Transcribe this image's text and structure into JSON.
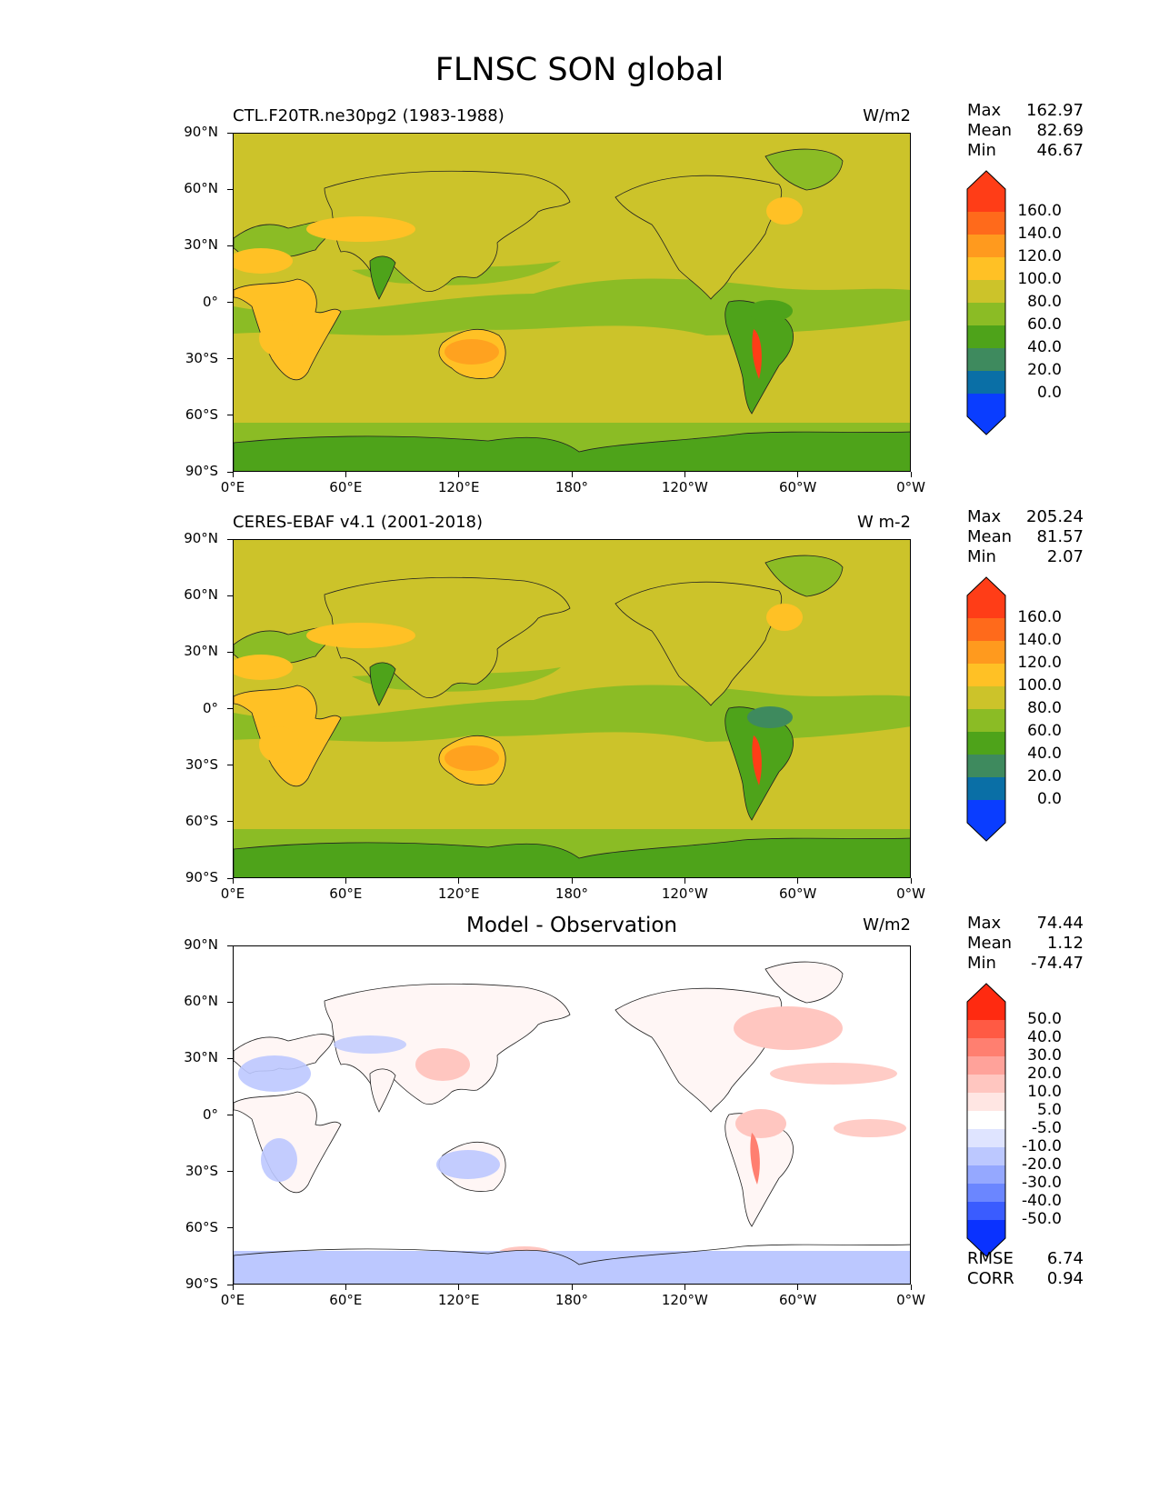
{
  "figure_title": "FLNSC SON global",
  "lat_ticks": [
    "90°N",
    "60°N",
    "30°N",
    "0°",
    "30°S",
    "60°S",
    "90°S"
  ],
  "lon_ticks": [
    "0°E",
    "60°E",
    "120°E",
    "180°",
    "120°W",
    "60°W",
    "0°W"
  ],
  "panels": [
    {
      "id": "test",
      "left_title": "CTL.F20TR.ne30pg2 (1983-1988)",
      "center_title": "",
      "units": "W/m2",
      "stats": [
        {
          "label": "Max",
          "value": "162.97"
        },
        {
          "label": "Mean",
          "value": "82.69"
        },
        {
          "label": "Min",
          "value": "46.67"
        }
      ],
      "colorbar": {
        "levels": [
          "160.0",
          "140.0",
          "120.0",
          "100.0",
          "80.0",
          "60.0",
          "40.0",
          "20.0",
          "0.0"
        ],
        "colors_top_to_bottom": [
          "#ff3d17",
          "#ff6a1b",
          "#ff9a1e",
          "#ffc125",
          "#ccc32a",
          "#8bbc25",
          "#4ea31a",
          "#3e8a5e",
          "#0a6fa6",
          "#0a3dff"
        ]
      }
    },
    {
      "id": "reference",
      "left_title": "CERES-EBAF v4.1 (2001-2018)",
      "center_title": "",
      "units": "W m-2",
      "stats": [
        {
          "label": "Max",
          "value": "205.24"
        },
        {
          "label": "Mean",
          "value": "81.57"
        },
        {
          "label": "Min",
          "value": "2.07"
        }
      ],
      "colorbar": {
        "levels": [
          "160.0",
          "140.0",
          "120.0",
          "100.0",
          "80.0",
          "60.0",
          "40.0",
          "20.0",
          "0.0"
        ],
        "colors_top_to_bottom": [
          "#ff3d17",
          "#ff6a1b",
          "#ff9a1e",
          "#ffc125",
          "#ccc32a",
          "#8bbc25",
          "#4ea31a",
          "#3e8a5e",
          "#0a6fa6",
          "#0a3dff"
        ]
      }
    },
    {
      "id": "diff",
      "left_title": "",
      "center_title": "Model - Observation",
      "units": "W/m2",
      "stats": [
        {
          "label": "Max",
          "value": "74.44"
        },
        {
          "label": "Mean",
          "value": "1.12"
        },
        {
          "label": "Min",
          "value": "-74.47"
        }
      ],
      "colorbar": {
        "levels": [
          "50.0",
          "40.0",
          "30.0",
          "20.0",
          "10.0",
          "5.0",
          "-5.0",
          "-10.0",
          "-20.0",
          "-30.0",
          "-40.0",
          "-50.0"
        ],
        "colors_top_to_bottom": [
          "#ff2a10",
          "#ff5a44",
          "#ff7f70",
          "#ffa29a",
          "#ffc6c0",
          "#ffe6e3",
          "#ffffff",
          "#dfe4ff",
          "#bcc8ff",
          "#95a8ff",
          "#6b86ff",
          "#3a5cff",
          "#0a32ff"
        ]
      },
      "extra_stats": [
        {
          "label": "RMSE",
          "value": "6.74"
        },
        {
          "label": "CORR",
          "value": "0.94"
        }
      ]
    }
  ],
  "map_colors": {
    "ocean_base": "#ccc32a",
    "green_light": "#8bbc25",
    "green_dark": "#4ea31a",
    "orange_light": "#ffc125",
    "orange": "#ff9a1e",
    "red": "#ff3d17",
    "teal": "#3e8a5e",
    "diff_base": "#ffffff",
    "diff_pos": "#ffc6c0",
    "diff_pos_strong": "#ff7f70",
    "diff_neg": "#bcc8ff",
    "diff_neg_strong": "#95a8ff"
  }
}
